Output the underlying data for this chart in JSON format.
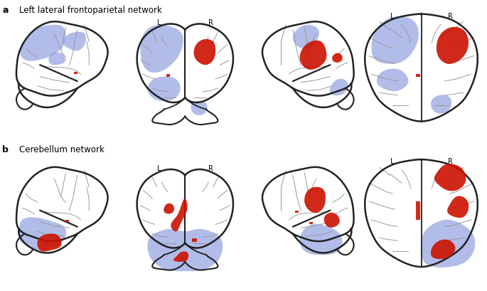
{
  "title_a": "Left lateral frontoparietal network",
  "title_b": "Cerebellum network",
  "label_a": "a",
  "label_b": "b",
  "blue_color": "#8899DD",
  "red_color": "#CC1100",
  "brain_outline_color": "#222222",
  "bg_color": "#ffffff",
  "sulci_color": "#999999",
  "sulci_lw": 0.7,
  "brain_lw": 1.8,
  "L_label": "L",
  "R_label": "R",
  "label_fontsize": 9,
  "title_fontsize": 8.5,
  "LR_fontsize": 7
}
